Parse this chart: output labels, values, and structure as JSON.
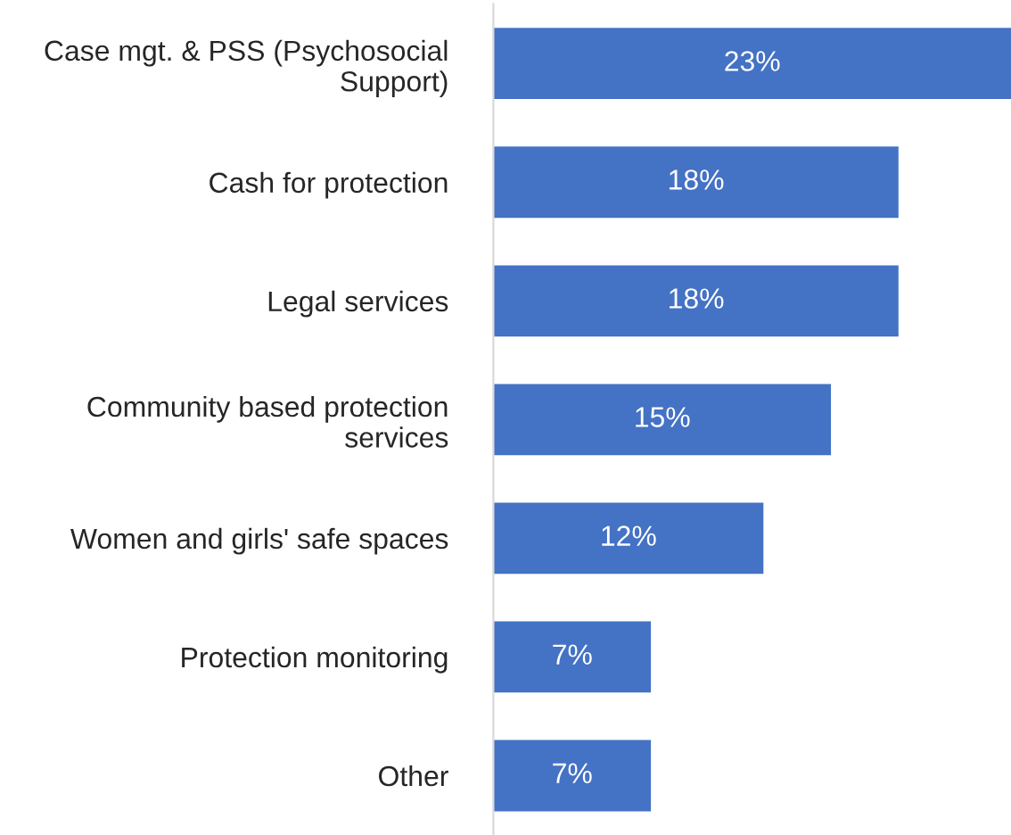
{
  "chart_data": {
    "type": "bar",
    "orientation": "horizontal",
    "categories": [
      "Case mgt. & PSS (Psychosocial\nSupport)",
      "Cash for protection",
      "Legal services",
      "Community based protection\nservices",
      "Women and girls' safe spaces",
      "Protection monitoring",
      "Other"
    ],
    "values": [
      23,
      18,
      18,
      15,
      12,
      7,
      7
    ],
    "value_labels": [
      "23%",
      "18%",
      "18%",
      "15%",
      "12%",
      "7%",
      "7%"
    ],
    "color": "#4472c4",
    "grid": false,
    "legend": false
  }
}
